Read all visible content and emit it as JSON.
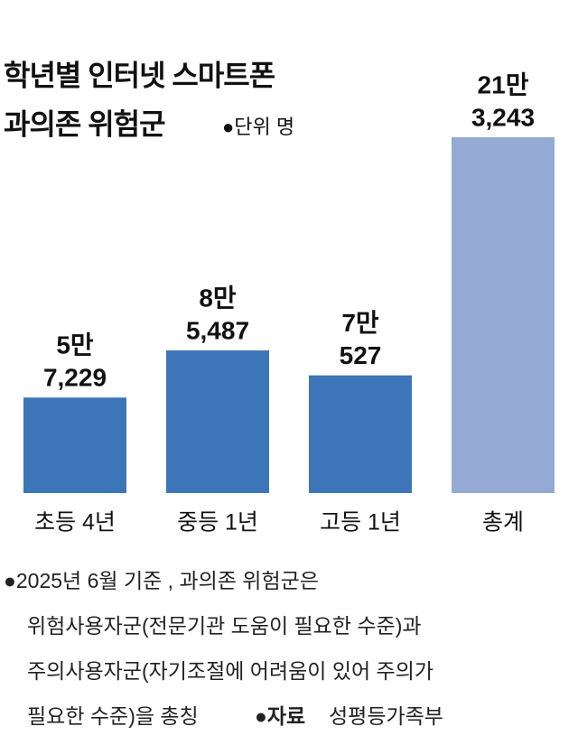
{
  "chart_data": {
    "type": "bar",
    "title": [
      "학년별 인터넷 스마트폰",
      "과의존 위험군"
    ],
    "unit": "●단위 명",
    "categories": [
      "초등 4년",
      "중등 1년",
      "고등 1년",
      "총계"
    ],
    "values": [
      57229,
      85487,
      70527,
      213243
    ],
    "value_labels": [
      [
        "5만",
        "7,229"
      ],
      [
        "8만",
        "5,487"
      ],
      [
        "7만",
        "527"
      ],
      [
        "21만",
        "3,243"
      ]
    ],
    "colors": [
      "#3d76b8",
      "#3d76b8",
      "#3d76b8",
      "#94aad4"
    ],
    "notes": [
      "●2025년 6월 기준 , 과의존 위험군은",
      "위험사용자군(전문기관 도움이 필요한 수준)과",
      "주의사용자군(자기조절에 어려움이 있어 주의가",
      "필요한 수준)을 총칭"
    ],
    "source_label": "●자료",
    "source": "성평등가족부"
  }
}
